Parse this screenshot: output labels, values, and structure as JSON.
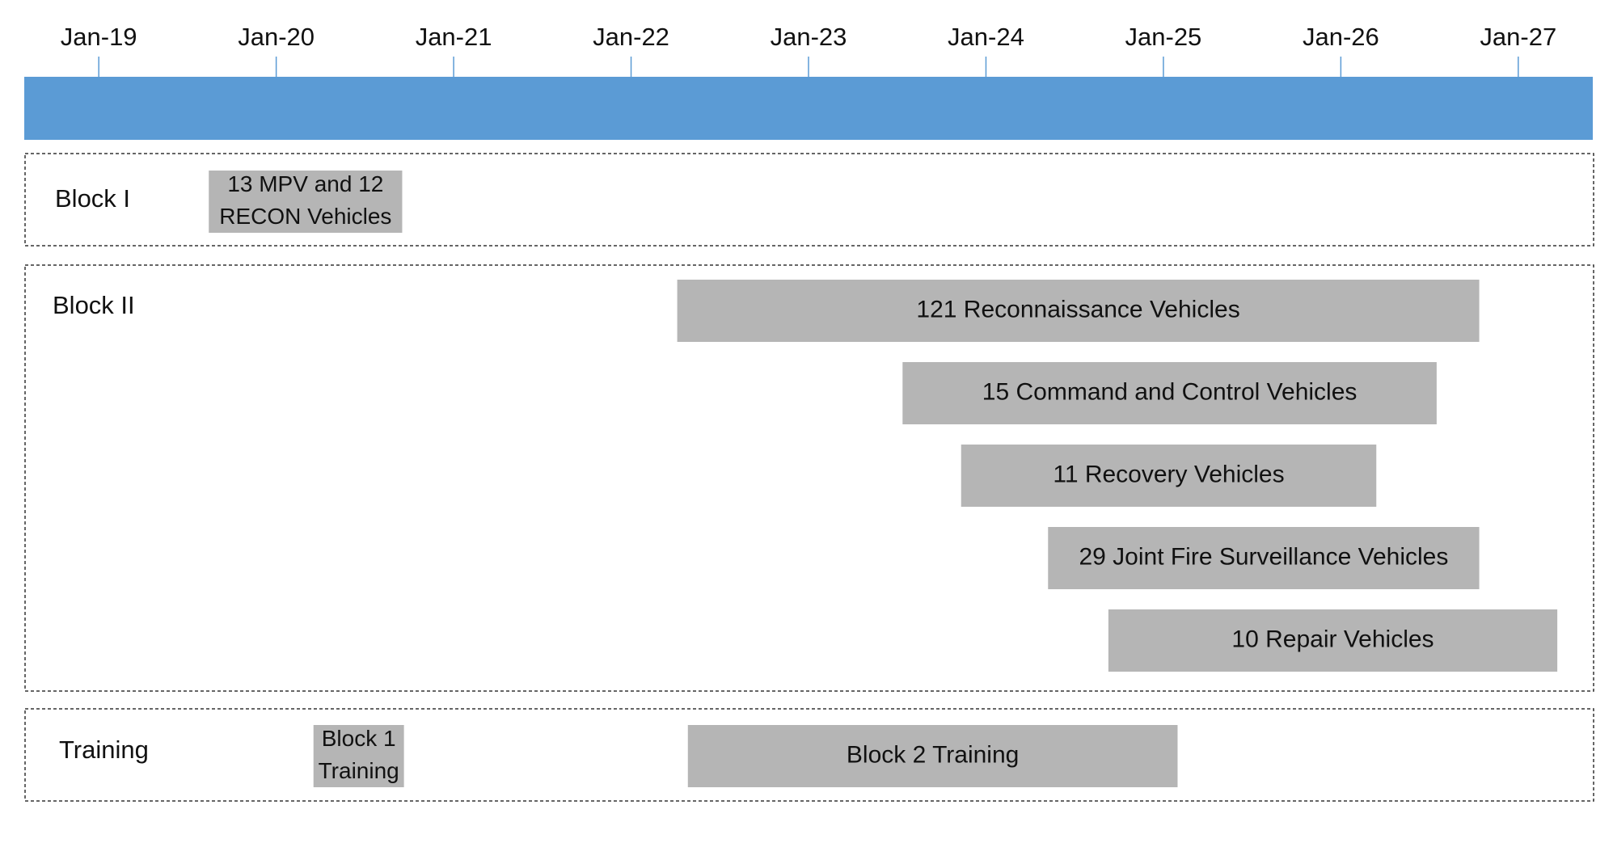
{
  "chart_data": {
    "type": "gantt",
    "timeline": {
      "ticks": [
        {
          "label": "Jan-19",
          "value": 2019
        },
        {
          "label": "Jan-20",
          "value": 2020
        },
        {
          "label": "Jan-21",
          "value": 2021
        },
        {
          "label": "Jan-22",
          "value": 2022
        },
        {
          "label": "Jan-23",
          "value": 2023
        },
        {
          "label": "Jan-24",
          "value": 2024
        },
        {
          "label": "Jan-25",
          "value": 2025
        },
        {
          "label": "Jan-26",
          "value": 2026
        },
        {
          "label": "Jan-27",
          "value": 2027
        }
      ],
      "xlim": [
        2018.58,
        2027.42
      ]
    },
    "groups": [
      {
        "name": "Block I",
        "bars": [
          {
            "label_lines": [
              "13 MPV and 12",
              "RECON Vehicles"
            ],
            "start": 2019.62,
            "end": 2020.71
          }
        ]
      },
      {
        "name": "Block II",
        "bars": [
          {
            "label_lines": [
              "121 Reconnaissance Vehicles"
            ],
            "start": 2022.26,
            "end": 2026.78
          },
          {
            "label_lines": [
              "15 Command and Control Vehicles"
            ],
            "start": 2023.53,
            "end": 2026.54
          },
          {
            "label_lines": [
              "11 Recovery Vehicles"
            ],
            "start": 2023.86,
            "end": 2026.2
          },
          {
            "label_lines": [
              "29 Joint Fire Surveillance Vehicles"
            ],
            "start": 2024.35,
            "end": 2026.78
          },
          {
            "label_lines": [
              "10 Repair Vehicles"
            ],
            "start": 2024.69,
            "end": 2027.22
          }
        ]
      },
      {
        "name": "Training",
        "bars": [
          {
            "label_lines": [
              "Block 1",
              "Training"
            ],
            "start": 2020.21,
            "end": 2020.72
          },
          {
            "label_lines": [
              "Block 2 Training"
            ],
            "start": 2022.32,
            "end": 2025.08
          }
        ]
      }
    ],
    "colors": {
      "axis_band": "#5b9bd5",
      "tick_line": "#5b9bd5",
      "bar_fill": "#b5b5b5",
      "group_border": "#333333",
      "text": "#111111"
    }
  }
}
